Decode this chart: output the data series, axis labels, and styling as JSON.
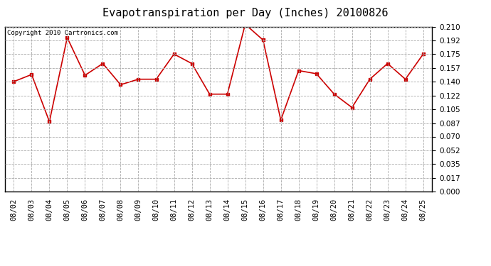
{
  "title": "Evapotranspiration per Day (Inches) 20100826",
  "copyright": "Copyright 2010 Cartronics.com",
  "dates": [
    "08/02",
    "08/03",
    "08/04",
    "08/05",
    "08/06",
    "08/07",
    "08/08",
    "08/09",
    "08/10",
    "08/11",
    "08/12",
    "08/13",
    "08/14",
    "08/15",
    "08/16",
    "08/17",
    "08/18",
    "08/19",
    "08/20",
    "08/21",
    "08/22",
    "08/23",
    "08/24",
    "08/25"
  ],
  "values": [
    0.14,
    0.149,
    0.089,
    0.196,
    0.148,
    0.163,
    0.136,
    0.143,
    0.143,
    0.175,
    0.163,
    0.124,
    0.124,
    0.213,
    0.193,
    0.091,
    0.154,
    0.15,
    0.124,
    0.107,
    0.143,
    0.163,
    0.143,
    0.175
  ],
  "line_color": "#cc0000",
  "marker": "s",
  "marker_size": 3,
  "ylim": [
    0.0,
    0.21
  ],
  "yticks": [
    0.0,
    0.017,
    0.035,
    0.052,
    0.07,
    0.087,
    0.105,
    0.122,
    0.14,
    0.157,
    0.175,
    0.192,
    0.21
  ],
  "background_color": "#ffffff",
  "plot_bg_color": "#ffffff",
  "grid_color": "#aaaaaa",
  "title_fontsize": 11,
  "copyright_fontsize": 6.5,
  "tick_fontsize": 7.5
}
